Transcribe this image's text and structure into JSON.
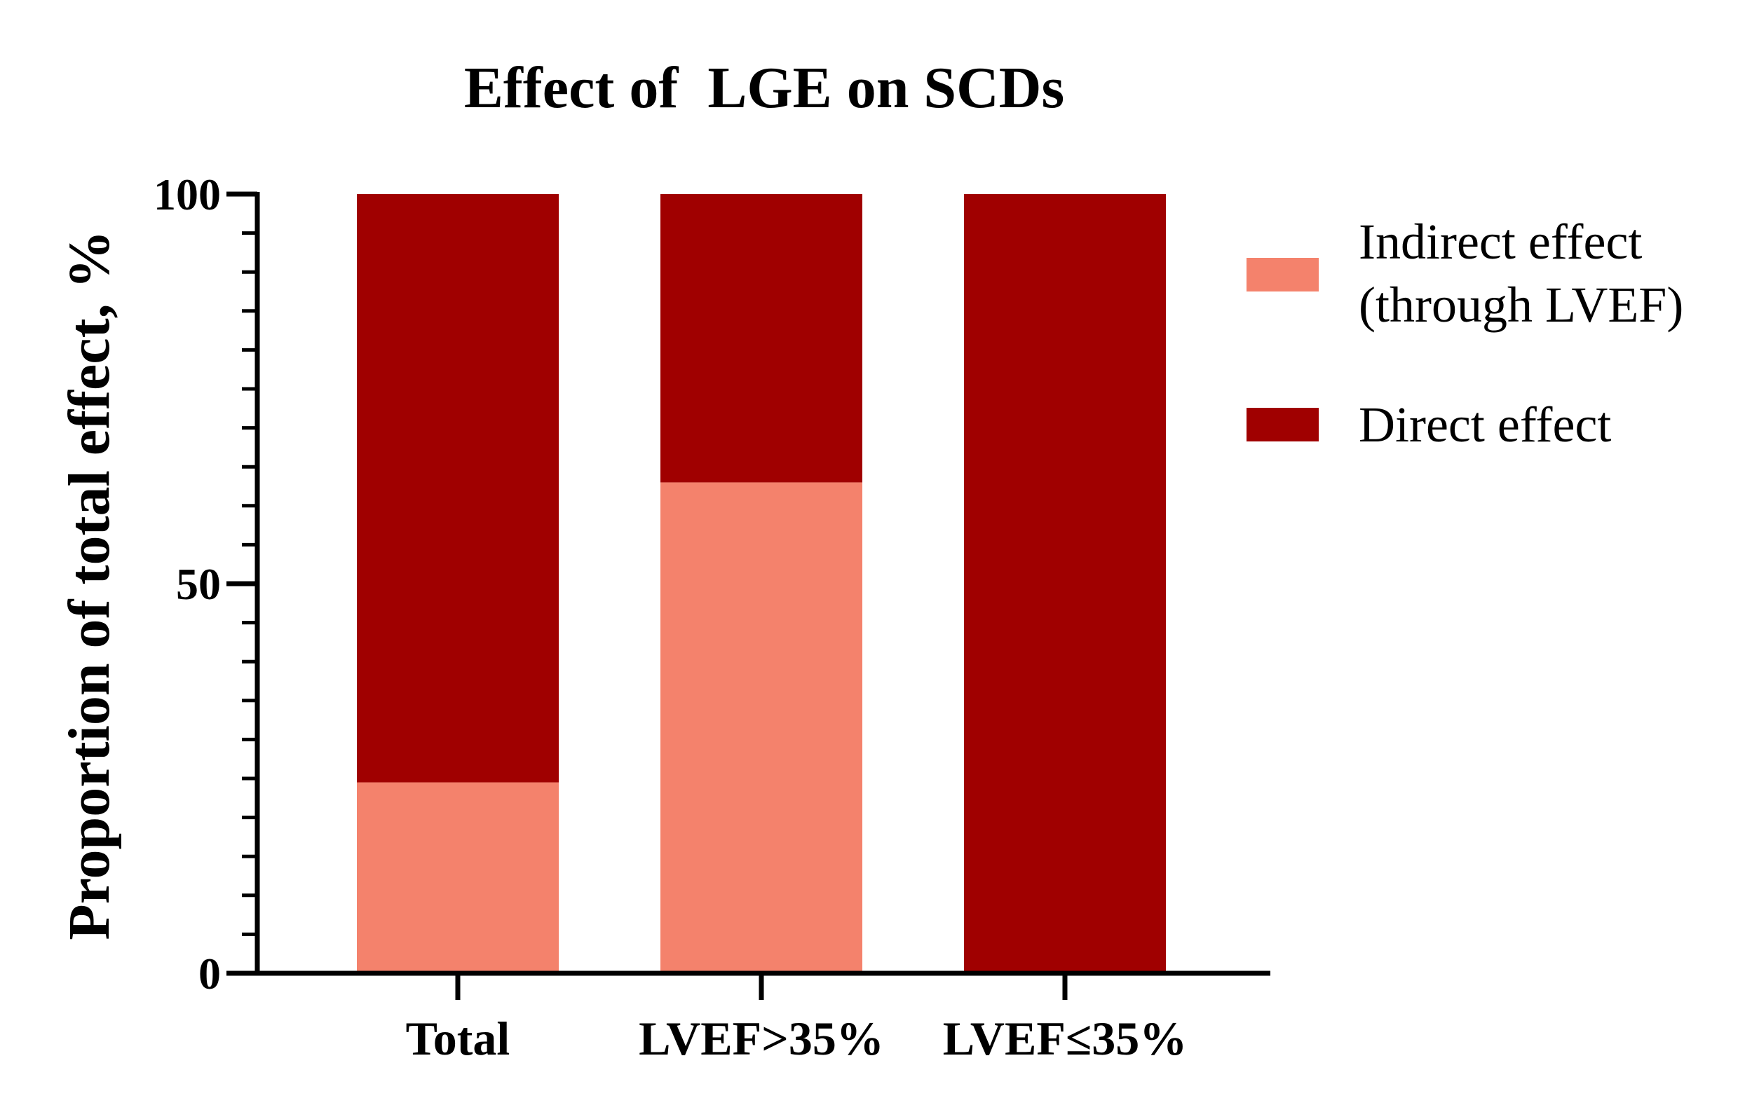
{
  "chart_data": {
    "type": "bar",
    "stacked": true,
    "title": "Effect of  LGE on SCDs",
    "xlabel": "",
    "ylabel": "Proportion of total effect, %",
    "categories": [
      "Total",
      "LVEF>35%",
      "LVEF≤35%"
    ],
    "ylim": [
      0,
      100
    ],
    "yticks": [
      "0",
      "50",
      "100"
    ],
    "series": [
      {
        "name": "Indirect effect (through LVEF)",
        "legend_lines": [
          "Indirect effect",
          "(through LVEF)"
        ],
        "color": "#f4826c",
        "values": [
          24.5,
          63,
          0
        ]
      },
      {
        "name": "Direct effect",
        "legend_lines": [
          "Direct effect"
        ],
        "color": "#a00000",
        "values": [
          75.5,
          37,
          100
        ]
      }
    ],
    "grid": false,
    "legend_position": "right"
  }
}
